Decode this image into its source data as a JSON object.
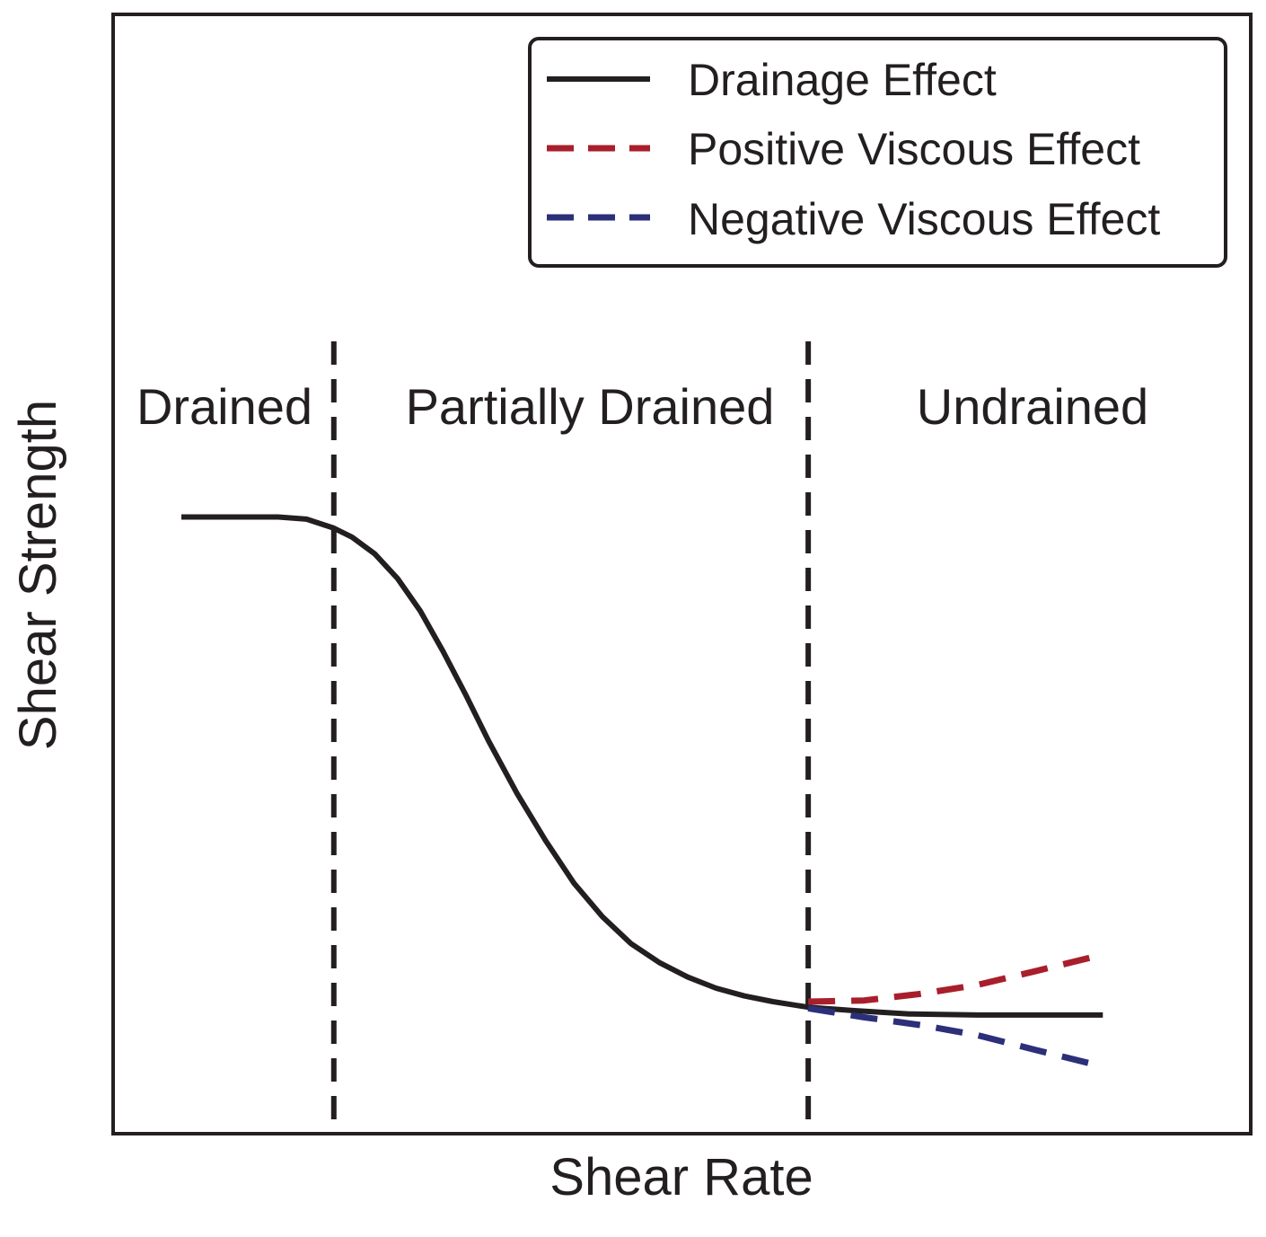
{
  "chart_data": {
    "type": "line",
    "title": "",
    "xlabel": "Shear Rate",
    "ylabel": "Shear Strength",
    "xlim": [
      0,
      1
    ],
    "ylim": [
      0,
      1
    ],
    "grid": false,
    "xticks": [],
    "yticks": [],
    "legend_position": "top-right",
    "regions": [
      {
        "label": "Drained",
        "x_start": 0.0,
        "x_end": 0.194
      },
      {
        "label": "Partially Drained",
        "x_start": 0.194,
        "x_end": 0.611
      },
      {
        "label": "Undrained",
        "x_start": 0.611,
        "x_end": 1.0
      }
    ],
    "boundaries": [
      0.194,
      0.611
    ],
    "series": [
      {
        "name": "Drainage Effect",
        "style": "solid",
        "color": "#231f20",
        "x": [
          0.06,
          0.1,
          0.125,
          0.145,
          0.17,
          0.194,
          0.21,
          0.23,
          0.25,
          0.27,
          0.29,
          0.31,
          0.33,
          0.355,
          0.38,
          0.405,
          0.43,
          0.455,
          0.48,
          0.505,
          0.53,
          0.555,
          0.58,
          0.611,
          0.65,
          0.7,
          0.76,
          0.87
        ],
        "y": [
          0.551,
          0.551,
          0.551,
          0.551,
          0.549,
          0.541,
          0.533,
          0.518,
          0.496,
          0.467,
          0.431,
          0.392,
          0.351,
          0.304,
          0.262,
          0.224,
          0.194,
          0.17,
          0.153,
          0.14,
          0.13,
          0.123,
          0.118,
          0.113,
          0.11,
          0.107,
          0.106,
          0.106
        ]
      },
      {
        "name": "Positive Viscous Effect",
        "style": "dashed",
        "color": "#a81f2b",
        "x": [
          0.611,
          0.66,
          0.71,
          0.76,
          0.81,
          0.87
        ],
        "y": [
          0.118,
          0.119,
          0.125,
          0.133,
          0.145,
          0.16
        ]
      },
      {
        "name": "Negative Viscous Effect",
        "style": "dashed",
        "color": "#2c2f79",
        "x": [
          0.611,
          0.66,
          0.71,
          0.76,
          0.81,
          0.87
        ],
        "y": [
          0.112,
          0.104,
          0.097,
          0.088,
          0.075,
          0.06
        ]
      }
    ]
  }
}
